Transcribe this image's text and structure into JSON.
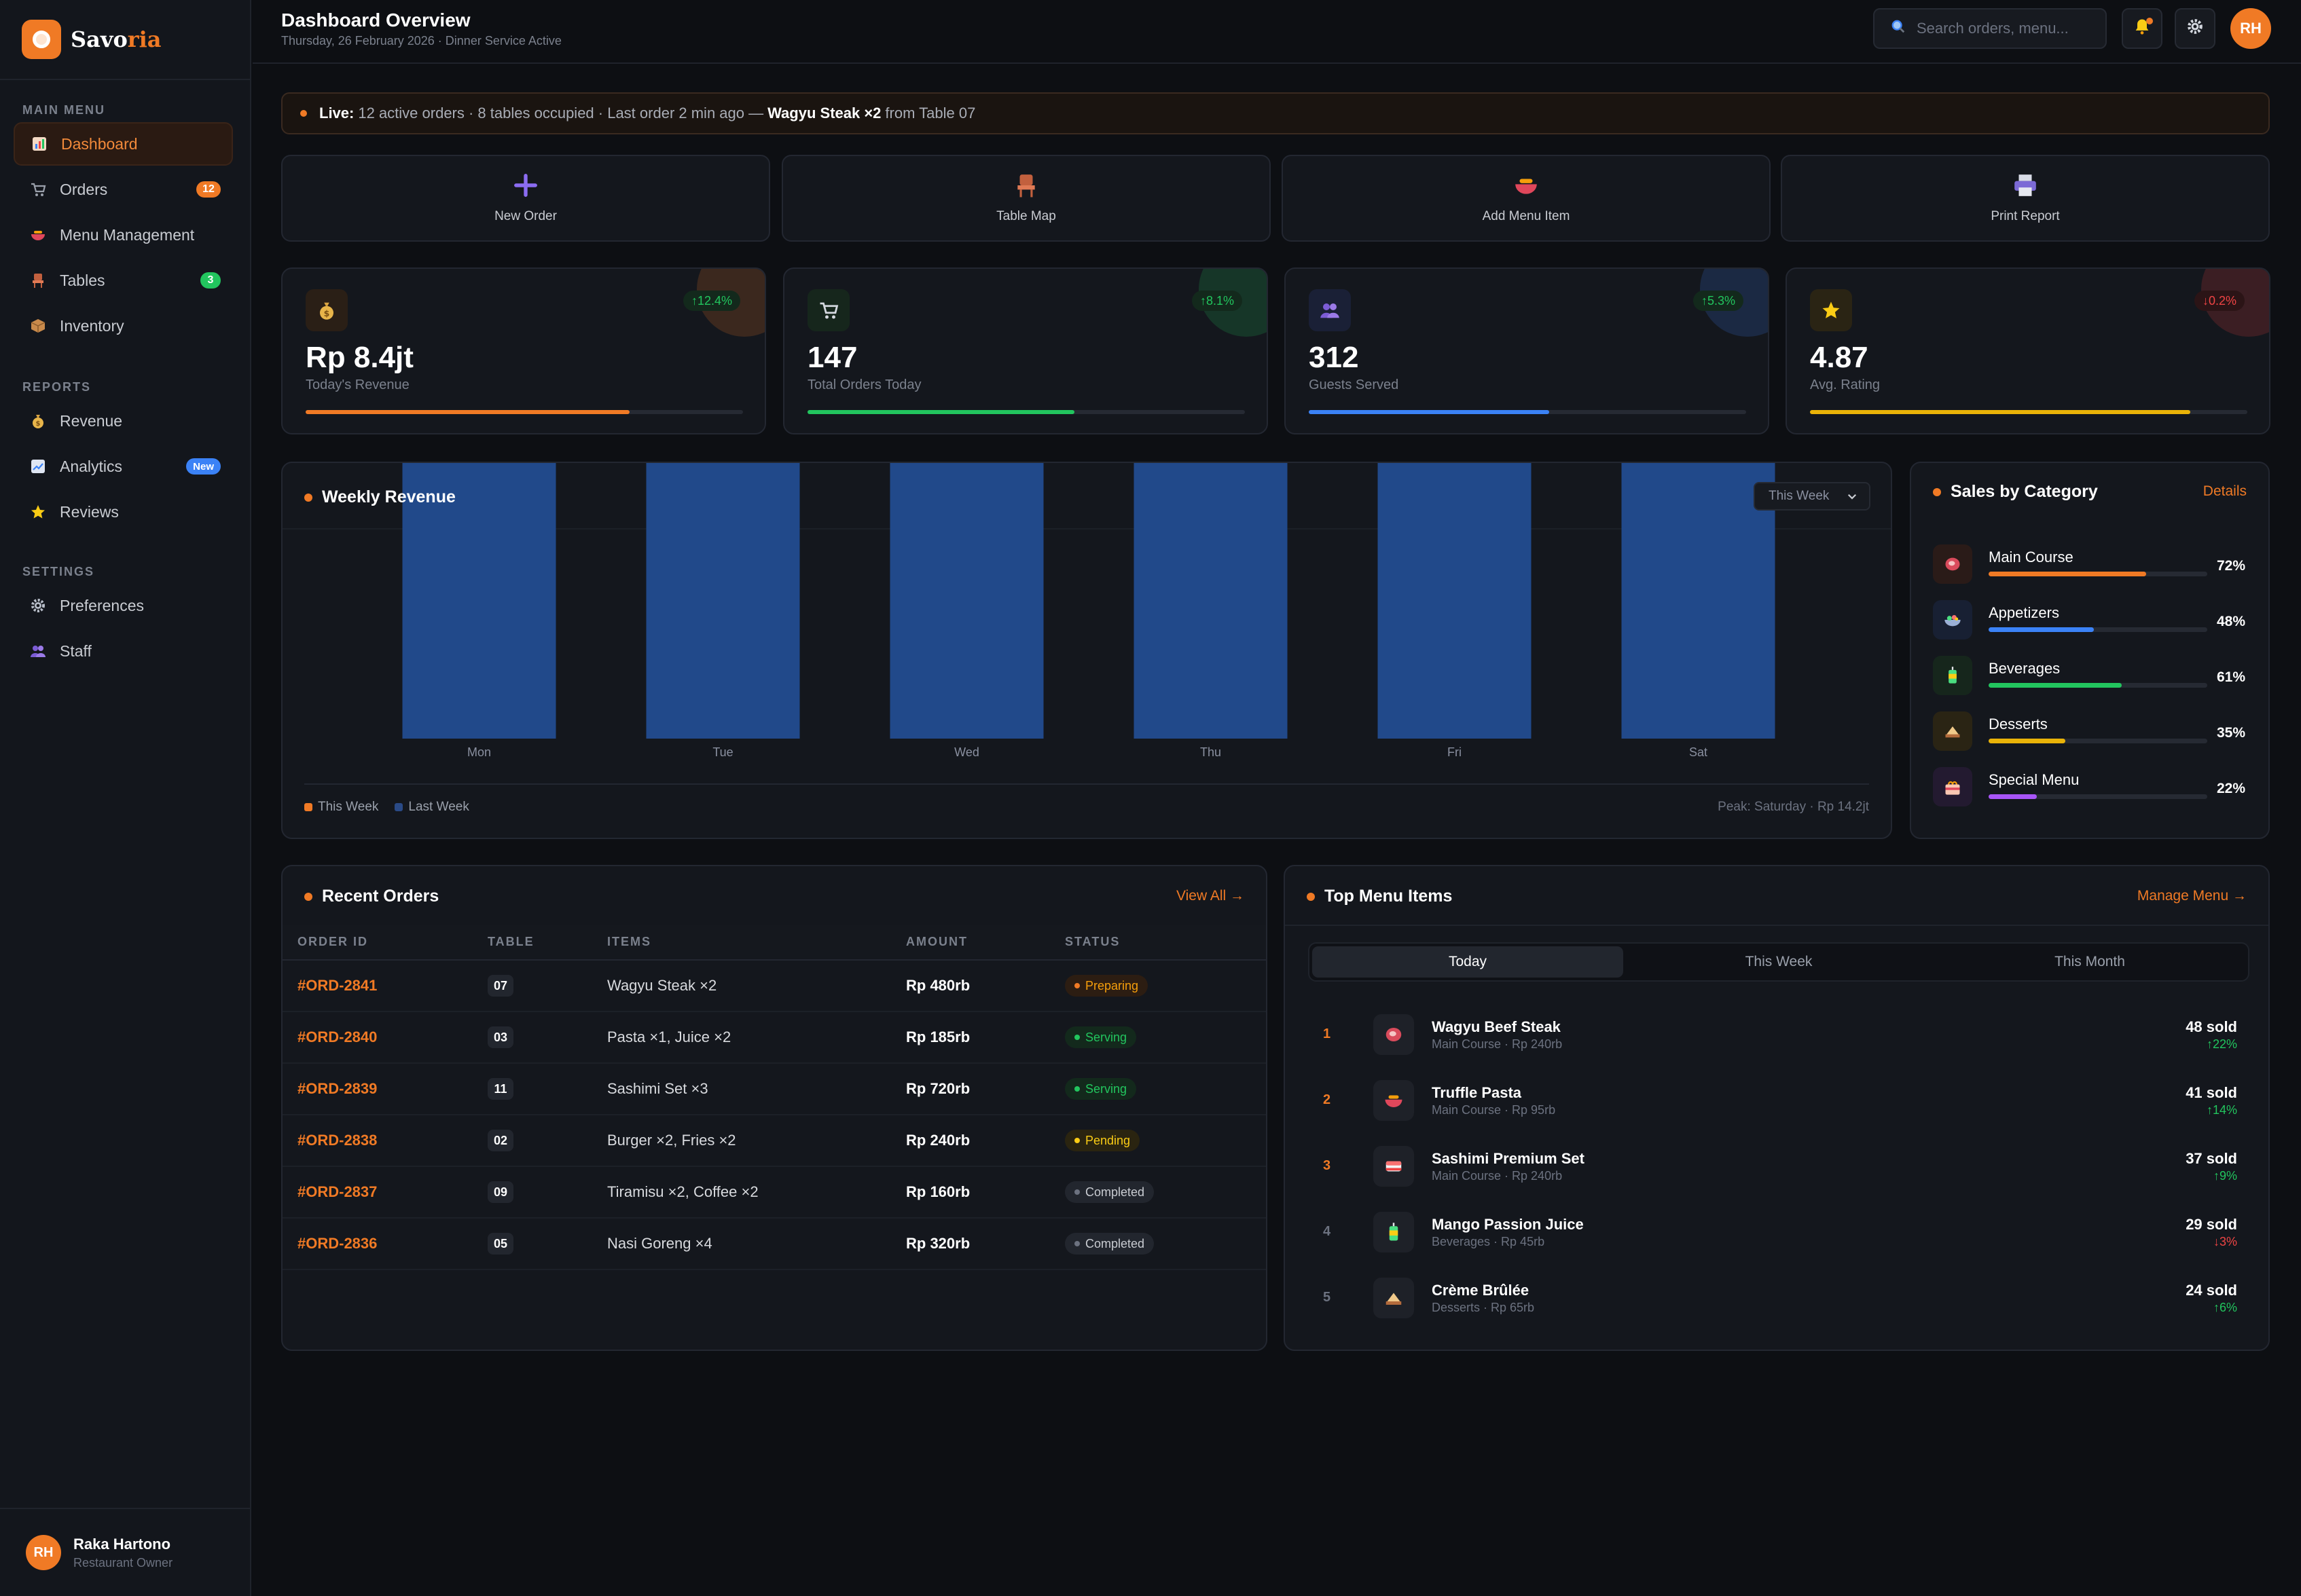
{
  "brand": {
    "name_main": "Savo",
    "name_accent": "ria"
  },
  "sidebar": {
    "sections": [
      "MAIN MENU",
      "REPORTS",
      "SETTINGS"
    ],
    "main": [
      {
        "label": "Dashboard",
        "icon": "bar-chart-icon",
        "active": true
      },
      {
        "label": "Orders",
        "icon": "cart-icon",
        "badge": "12"
      },
      {
        "label": "Menu Management",
        "icon": "bowl-icon"
      },
      {
        "label": "Tables",
        "icon": "chair-icon",
        "badge": "3"
      },
      {
        "label": "Inventory",
        "icon": "box-icon"
      }
    ],
    "reports": [
      {
        "label": "Revenue",
        "icon": "money-bag-icon"
      },
      {
        "label": "Analytics",
        "icon": "trend-icon",
        "badge": "New"
      },
      {
        "label": "Reviews",
        "icon": "star-icon"
      }
    ],
    "settings": [
      {
        "label": "Preferences",
        "icon": "gear-icon"
      },
      {
        "label": "Staff",
        "icon": "people-icon"
      }
    ],
    "user": {
      "initials": "RH",
      "name": "Raka Hartono",
      "role": "Restaurant Owner"
    }
  },
  "header": {
    "title": "Dashboard Overview",
    "date": "Thursday, 26 February 2026",
    "service": "Dinner Service Active",
    "search_placeholder": "Search orders, menu...",
    "avatar": "RH"
  },
  "live": {
    "label": "Live:",
    "text": "12 active orders · 8 tables occupied · Last order 2 min ago —",
    "item": "Wagyu Steak ×2",
    "from": "from Table 07"
  },
  "quick_actions": [
    {
      "label": "New Order",
      "icon": "plus-icon"
    },
    {
      "label": "Table Map",
      "icon": "chair-icon"
    },
    {
      "label": "Add Menu Item",
      "icon": "bowl-icon"
    },
    {
      "label": "Print Report",
      "icon": "printer-icon"
    }
  ],
  "stats": [
    {
      "value": "Rp 8.4jt",
      "label": "Today's Revenue",
      "change": "↑12.4%",
      "trend": "up",
      "progress": 0.74,
      "color": "#f07a25",
      "icon": "money-bag-icon"
    },
    {
      "value": "147",
      "label": "Total Orders Today",
      "change": "↑8.1%",
      "trend": "up",
      "progress": 0.61,
      "color": "#22c55e",
      "icon": "cart-icon"
    },
    {
      "value": "312",
      "label": "Guests Served",
      "change": "↑5.3%",
      "trend": "up",
      "progress": 0.55,
      "color": "#3b82f6",
      "icon": "people-icon"
    },
    {
      "value": "4.87",
      "label": "Avg. Rating",
      "change": "↓0.2%",
      "trend": "down",
      "progress": 0.87,
      "color": "#eab308",
      "icon": "star-icon"
    }
  ],
  "weekly": {
    "title": "Weekly Revenue",
    "period": "This Week",
    "legend": [
      "This Week",
      "Last Week"
    ],
    "peak": "Peak: Saturday · Rp 14.2jt"
  },
  "chart_data": {
    "type": "bar",
    "title": "Weekly Revenue",
    "categories": [
      "Mon",
      "Tue",
      "Wed",
      "Thu",
      "Fri",
      "Sat"
    ],
    "series": [
      {
        "name": "Last Week",
        "values": [
          1,
          1,
          1,
          1,
          1,
          1
        ]
      }
    ],
    "legend": [
      "This Week",
      "Last Week"
    ],
    "note": "Bars all render at full height; no y-axis printed"
  },
  "categories": {
    "title": "Sales by Category",
    "link": "Details",
    "items": [
      {
        "name": "Main Course",
        "pct": "72%",
        "value": 0.72,
        "color": "#f07a25",
        "icon": "meat-icon",
        "bg": "#2a1b18"
      },
      {
        "name": "Appetizers",
        "pct": "48%",
        "value": 0.48,
        "color": "#3b82f6",
        "icon": "salad-icon",
        "bg": "#182033"
      },
      {
        "name": "Beverages",
        "pct": "61%",
        "value": 0.61,
        "color": "#22c55e",
        "icon": "drink-icon",
        "bg": "#16261c"
      },
      {
        "name": "Desserts",
        "pct": "35%",
        "value": 0.35,
        "color": "#eab308",
        "icon": "cake-icon",
        "bg": "#2a2414"
      },
      {
        "name": "Special Menu",
        "pct": "22%",
        "value": 0.22,
        "color": "#a855f7",
        "icon": "gift-icon",
        "bg": "#231a30"
      }
    ]
  },
  "orders": {
    "title": "Recent Orders",
    "link": "View All →",
    "columns": [
      "ORDER ID",
      "TABLE",
      "ITEMS",
      "AMOUNT",
      "STATUS"
    ],
    "rows": [
      {
        "id": "#ORD-2841",
        "table": "07",
        "items": "Wagyu Steak ×2",
        "amount": "Rp 480rb",
        "status": "Preparing"
      },
      {
        "id": "#ORD-2840",
        "table": "03",
        "items": "Pasta ×1, Juice ×2",
        "amount": "Rp 185rb",
        "status": "Serving"
      },
      {
        "id": "#ORD-2839",
        "table": "11",
        "items": "Sashimi Set ×3",
        "amount": "Rp 720rb",
        "status": "Serving"
      },
      {
        "id": "#ORD-2838",
        "table": "02",
        "items": "Burger ×2, Fries ×2",
        "amount": "Rp 240rb",
        "status": "Pending"
      },
      {
        "id": "#ORD-2837",
        "table": "09",
        "items": "Tiramisu ×2, Coffee ×2",
        "amount": "Rp 160rb",
        "status": "Completed"
      },
      {
        "id": "#ORD-2836",
        "table": "05",
        "items": "Nasi Goreng ×4",
        "amount": "Rp 320rb",
        "status": "Completed"
      }
    ]
  },
  "top_items": {
    "title": "Top Menu Items",
    "link": "Manage Menu →",
    "tabs": [
      "Today",
      "This Week",
      "This Month"
    ],
    "items": [
      {
        "rank": "1",
        "name": "Wagyu Beef Steak",
        "sub": "Main Course · Rp 240rb",
        "sold": "48 sold",
        "trend": "↑22%",
        "dir": "up",
        "icon": "meat-icon"
      },
      {
        "rank": "2",
        "name": "Truffle Pasta",
        "sub": "Main Course · Rp 95rb",
        "sold": "41 sold",
        "trend": "↑14%",
        "dir": "up",
        "icon": "bowl-icon"
      },
      {
        "rank": "3",
        "name": "Sashimi Premium Set",
        "sub": "Main Course · Rp 240rb",
        "sold": "37 sold",
        "trend": "↑9%",
        "dir": "up",
        "icon": "sushi-icon"
      },
      {
        "rank": "4",
        "name": "Mango Passion Juice",
        "sub": "Beverages · Rp 45rb",
        "sold": "29 sold",
        "trend": "↓3%",
        "dir": "down",
        "icon": "drink-icon"
      },
      {
        "rank": "5",
        "name": "Crème Brûlée",
        "sub": "Desserts · Rp 65rb",
        "sold": "24 sold",
        "trend": "↑6%",
        "dir": "up",
        "icon": "cake-icon"
      }
    ]
  }
}
